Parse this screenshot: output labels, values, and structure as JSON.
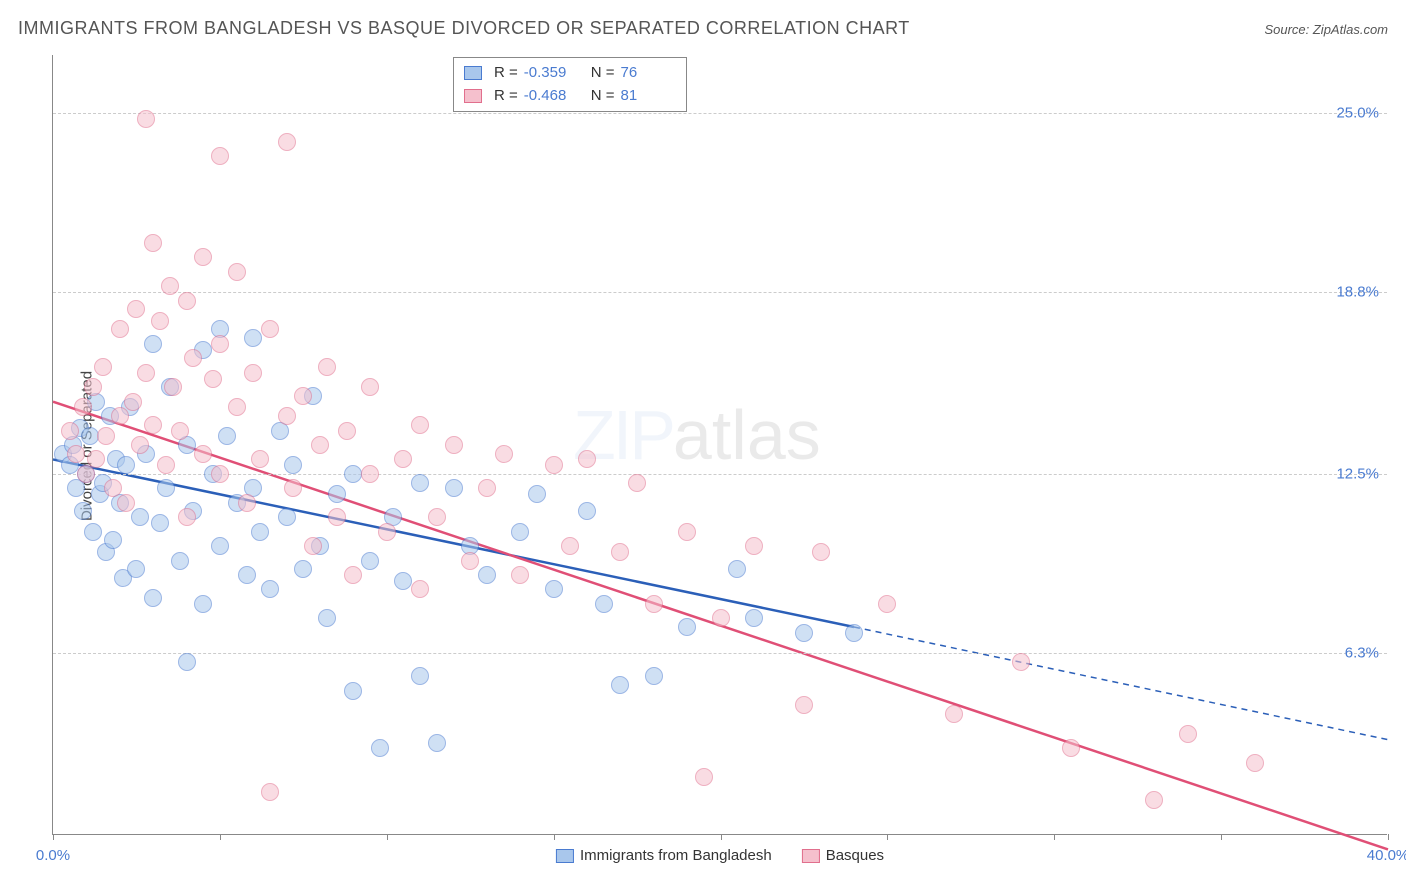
{
  "title": "IMMIGRANTS FROM BANGLADESH VS BASQUE DIVORCED OR SEPARATED CORRELATION CHART",
  "source": "Source: ZipAtlas.com",
  "ylabel": "Divorced or Separated",
  "watermark_zip": "ZIP",
  "watermark_atlas": "atlas",
  "chart": {
    "type": "scatter",
    "xlim": [
      0,
      40
    ],
    "ylim": [
      0,
      27
    ],
    "yticks": [
      {
        "val": 6.3,
        "label": "6.3%"
      },
      {
        "val": 12.5,
        "label": "12.5%"
      },
      {
        "val": 18.8,
        "label": "18.8%"
      },
      {
        "val": 25.0,
        "label": "25.0%"
      }
    ],
    "xticks": [
      0,
      5,
      10,
      15,
      20,
      25,
      30,
      35,
      40
    ],
    "xtick_labels": {
      "0": "0.0%",
      "40": "40.0%"
    },
    "background_color": "#ffffff",
    "grid_color": "#cccccc",
    "marker_radius": 9,
    "marker_opacity": 0.55,
    "series": [
      {
        "name": "Immigrants from Bangladesh",
        "fill": "#a9c7ec",
        "stroke": "#4a7bd0",
        "line_color": "#2b5fb8",
        "R": "-0.359",
        "N": "76",
        "regression": {
          "x1": 0,
          "y1": 13.0,
          "x2": 24,
          "y2": 7.2,
          "dash_x2": 40,
          "dash_y2": 3.3
        },
        "points": [
          [
            0.3,
            13.2
          ],
          [
            0.5,
            12.8
          ],
          [
            0.6,
            13.5
          ],
          [
            0.7,
            12.0
          ],
          [
            0.8,
            14.1
          ],
          [
            0.9,
            11.2
          ],
          [
            1.0,
            12.5
          ],
          [
            1.1,
            13.8
          ],
          [
            1.2,
            10.5
          ],
          [
            1.3,
            15.0
          ],
          [
            1.4,
            11.8
          ],
          [
            1.5,
            12.2
          ],
          [
            1.6,
            9.8
          ],
          [
            1.7,
            14.5
          ],
          [
            1.8,
            10.2
          ],
          [
            1.9,
            13.0
          ],
          [
            2.0,
            11.5
          ],
          [
            2.1,
            8.9
          ],
          [
            2.2,
            12.8
          ],
          [
            2.3,
            14.8
          ],
          [
            2.5,
            9.2
          ],
          [
            2.6,
            11.0
          ],
          [
            2.8,
            13.2
          ],
          [
            3.0,
            17.0
          ],
          [
            3.0,
            8.2
          ],
          [
            3.2,
            10.8
          ],
          [
            3.4,
            12.0
          ],
          [
            3.5,
            15.5
          ],
          [
            3.8,
            9.5
          ],
          [
            4.0,
            13.5
          ],
          [
            4.0,
            6.0
          ],
          [
            4.2,
            11.2
          ],
          [
            4.5,
            16.8
          ],
          [
            4.5,
            8.0
          ],
          [
            4.8,
            12.5
          ],
          [
            5.0,
            17.5
          ],
          [
            5.0,
            10.0
          ],
          [
            5.2,
            13.8
          ],
          [
            5.5,
            11.5
          ],
          [
            5.8,
            9.0
          ],
          [
            6.0,
            17.2
          ],
          [
            6.0,
            12.0
          ],
          [
            6.2,
            10.5
          ],
          [
            6.5,
            8.5
          ],
          [
            6.8,
            14.0
          ],
          [
            7.0,
            11.0
          ],
          [
            7.2,
            12.8
          ],
          [
            7.5,
            9.2
          ],
          [
            7.8,
            15.2
          ],
          [
            8.0,
            10.0
          ],
          [
            8.2,
            7.5
          ],
          [
            8.5,
            11.8
          ],
          [
            9.0,
            12.5
          ],
          [
            9.0,
            5.0
          ],
          [
            9.5,
            9.5
          ],
          [
            9.8,
            3.0
          ],
          [
            10.2,
            11.0
          ],
          [
            10.5,
            8.8
          ],
          [
            11.0,
            5.5
          ],
          [
            11.0,
            12.2
          ],
          [
            11.5,
            3.2
          ],
          [
            12.0,
            12.0
          ],
          [
            12.5,
            10.0
          ],
          [
            13.0,
            9.0
          ],
          [
            14.0,
            10.5
          ],
          [
            14.5,
            11.8
          ],
          [
            15.0,
            8.5
          ],
          [
            16.0,
            11.2
          ],
          [
            16.5,
            8.0
          ],
          [
            17.0,
            5.2
          ],
          [
            18.0,
            5.5
          ],
          [
            19.0,
            7.2
          ],
          [
            20.5,
            9.2
          ],
          [
            21.0,
            7.5
          ],
          [
            22.5,
            7.0
          ],
          [
            24.0,
            7.0
          ]
        ]
      },
      {
        "name": "Basques",
        "fill": "#f5c0cd",
        "stroke": "#e16f8d",
        "line_color": "#e04f76",
        "R": "-0.468",
        "N": "81",
        "regression": {
          "x1": 0,
          "y1": 15.0,
          "x2": 40,
          "y2": -0.5
        },
        "points": [
          [
            0.5,
            14.0
          ],
          [
            0.7,
            13.2
          ],
          [
            0.9,
            14.8
          ],
          [
            1.0,
            12.5
          ],
          [
            1.2,
            15.5
          ],
          [
            1.3,
            13.0
          ],
          [
            1.5,
            16.2
          ],
          [
            1.6,
            13.8
          ],
          [
            1.8,
            12.0
          ],
          [
            2.0,
            17.5
          ],
          [
            2.0,
            14.5
          ],
          [
            2.2,
            11.5
          ],
          [
            2.4,
            15.0
          ],
          [
            2.5,
            18.2
          ],
          [
            2.6,
            13.5
          ],
          [
            2.8,
            16.0
          ],
          [
            2.8,
            24.8
          ],
          [
            3.0,
            20.5
          ],
          [
            3.0,
            14.2
          ],
          [
            3.2,
            17.8
          ],
          [
            3.4,
            12.8
          ],
          [
            3.5,
            19.0
          ],
          [
            3.6,
            15.5
          ],
          [
            3.8,
            14.0
          ],
          [
            4.0,
            18.5
          ],
          [
            4.0,
            11.0
          ],
          [
            4.2,
            16.5
          ],
          [
            4.5,
            20.0
          ],
          [
            4.5,
            13.2
          ],
          [
            4.8,
            15.8
          ],
          [
            5.0,
            17.0
          ],
          [
            5.0,
            12.5
          ],
          [
            5.0,
            23.5
          ],
          [
            5.5,
            14.8
          ],
          [
            5.5,
            19.5
          ],
          [
            5.8,
            11.5
          ],
          [
            6.0,
            16.0
          ],
          [
            6.2,
            13.0
          ],
          [
            6.5,
            17.5
          ],
          [
            6.5,
            1.5
          ],
          [
            7.0,
            14.5
          ],
          [
            7.0,
            24.0
          ],
          [
            7.2,
            12.0
          ],
          [
            7.5,
            15.2
          ],
          [
            7.8,
            10.0
          ],
          [
            8.0,
            13.5
          ],
          [
            8.2,
            16.2
          ],
          [
            8.5,
            11.0
          ],
          [
            8.8,
            14.0
          ],
          [
            9.0,
            9.0
          ],
          [
            9.5,
            12.5
          ],
          [
            9.5,
            15.5
          ],
          [
            10.0,
            10.5
          ],
          [
            10.5,
            13.0
          ],
          [
            11.0,
            14.2
          ],
          [
            11.0,
            8.5
          ],
          [
            11.5,
            11.0
          ],
          [
            12.0,
            13.5
          ],
          [
            12.5,
            9.5
          ],
          [
            13.0,
            12.0
          ],
          [
            13.5,
            13.2
          ],
          [
            14.0,
            9.0
          ],
          [
            15.0,
            12.8
          ],
          [
            15.5,
            10.0
          ],
          [
            16.0,
            13.0
          ],
          [
            17.0,
            9.8
          ],
          [
            17.5,
            12.2
          ],
          [
            18.0,
            8.0
          ],
          [
            19.0,
            10.5
          ],
          [
            19.5,
            2.0
          ],
          [
            20.0,
            7.5
          ],
          [
            21.0,
            10.0
          ],
          [
            22.5,
            4.5
          ],
          [
            23.0,
            9.8
          ],
          [
            25.0,
            8.0
          ],
          [
            27.0,
            4.2
          ],
          [
            29.0,
            6.0
          ],
          [
            30.5,
            3.0
          ],
          [
            33.0,
            1.2
          ],
          [
            34.0,
            3.5
          ],
          [
            36.0,
            2.5
          ]
        ]
      }
    ]
  }
}
